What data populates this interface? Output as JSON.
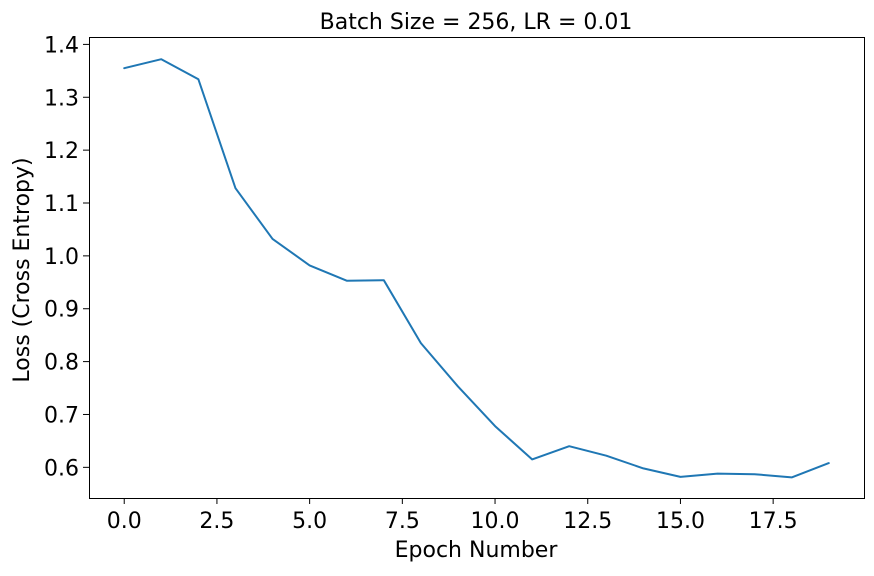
{
  "chart_data": {
    "type": "line",
    "title": "Batch Size = 256, LR = 0.01",
    "xlabel": "Epoch Number",
    "ylabel": "Loss (Cross Entropy)",
    "xlim": [
      -0.95,
      19.95
    ],
    "ylim": [
      0.542,
      1.414
    ],
    "x_ticks": [
      0.0,
      2.5,
      5.0,
      7.5,
      10.0,
      12.5,
      15.0,
      17.5
    ],
    "x_tick_labels": [
      "0.0",
      "2.5",
      "5.0",
      "7.5",
      "10.0",
      "12.5",
      "15.0",
      "17.5"
    ],
    "y_ticks": [
      0.6,
      0.7,
      0.8,
      0.9,
      1.0,
      1.1,
      1.2,
      1.3,
      1.4
    ],
    "y_tick_labels": [
      "0.6",
      "0.7",
      "0.8",
      "0.9",
      "1.0",
      "1.1",
      "1.2",
      "1.3",
      "1.4"
    ],
    "grid": false,
    "series": [
      {
        "color": "#1f77b4",
        "x": [
          0,
          1,
          2,
          3,
          4,
          5,
          6,
          7,
          8,
          9,
          10,
          11,
          12,
          13,
          14,
          15,
          16,
          17,
          18,
          19
        ],
        "values": [
          1.355,
          1.372,
          1.334,
          1.128,
          1.032,
          0.982,
          0.953,
          0.954,
          0.835,
          0.753,
          0.678,
          0.615,
          0.64,
          0.622,
          0.598,
          0.582,
          0.588,
          0.587,
          0.581,
          0.608
        ]
      }
    ]
  }
}
